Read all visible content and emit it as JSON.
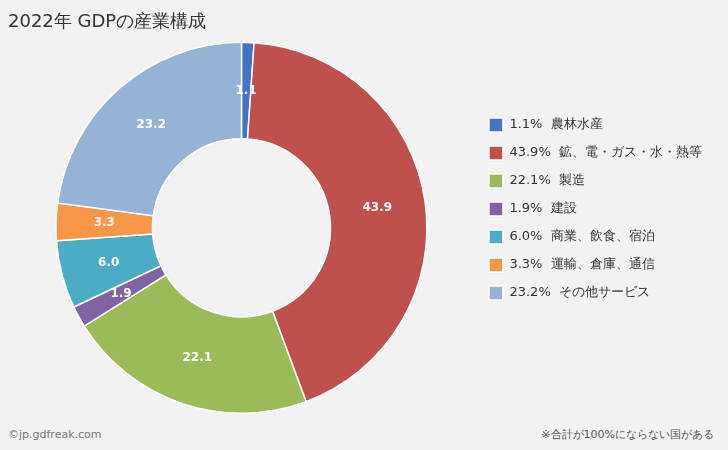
{
  "chart_data": {
    "type": "donut",
    "title": "2022年 GDPの産業構成",
    "categories": [
      "1.1%  農林水産",
      "43.9%  鉱、電・ガス・水・熱等",
      "22.1%  製造",
      "1.9%  建設",
      "6.0%  商業、飲食、宿泊",
      "3.3%  運輸、倉庫、通信",
      "23.2%  その他サービス"
    ],
    "values": [
      1.1,
      43.9,
      22.1,
      1.9,
      6.0,
      3.3,
      23.2
    ],
    "value_labels": [
      "1.1",
      "43.9",
      "22.1",
      "1.9",
      "6.0",
      "3.3",
      "23.2"
    ],
    "colors": [
      "#4472C4",
      "#C0504D",
      "#9BBB59",
      "#8064A2",
      "#4BACC6",
      "#F79646",
      "#95B3D7"
    ],
    "data_labels": true,
    "legend": "right",
    "annotations": [
      "※合計が100%にならない国がある",
      "©jp.gdfreak.com"
    ]
  }
}
